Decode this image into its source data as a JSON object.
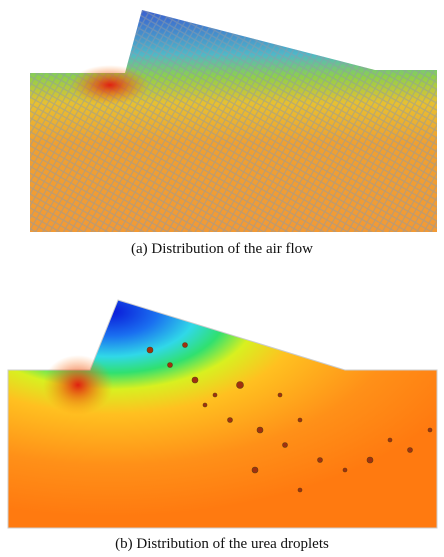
{
  "figures": [
    {
      "caption": "(a) Distribution of the air flow"
    },
    {
      "caption": "(b) Distribution of the urea droplets"
    }
  ]
}
